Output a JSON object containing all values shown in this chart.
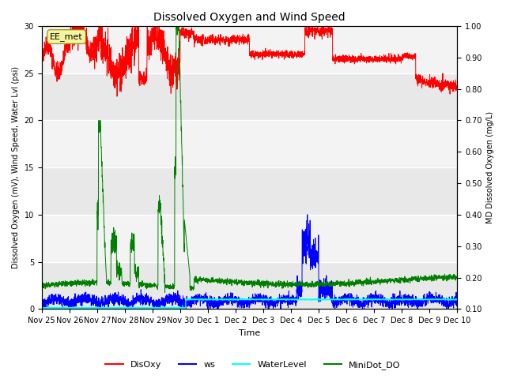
{
  "title": "Dissolved Oxygen and Wind Speed",
  "ylabel_left": "Dissolved Oxygen (mV), Wind Speed, Water Lvl (psi)",
  "ylabel_right": "MD Dissolved Oxygen (mg/L)",
  "xlabel": "Time",
  "ylim_left": [
    0,
    30
  ],
  "ylim_right": [
    0.1,
    1.0
  ],
  "fig_bg_color": "#ffffff",
  "axes_bg_color": "#e8e8e8",
  "annotation_text": "EE_met",
  "legend_labels": [
    "DisOxy",
    "ws",
    "WaterLevel",
    "MiniDot_DO"
  ],
  "legend_colors": [
    "red",
    "blue",
    "cyan",
    "green"
  ],
  "xtick_labels": [
    "Nov 25",
    "Nov 26",
    "Nov 27",
    "Nov 28",
    "Nov 29",
    "Nov 30",
    "Dec 1",
    "Dec 2",
    "Dec 3",
    "Dec 4",
    "Dec 5",
    "Dec 6",
    "Dec 7",
    "Dec 8",
    "Dec 9",
    "Dec 10"
  ],
  "n_points": 3000
}
